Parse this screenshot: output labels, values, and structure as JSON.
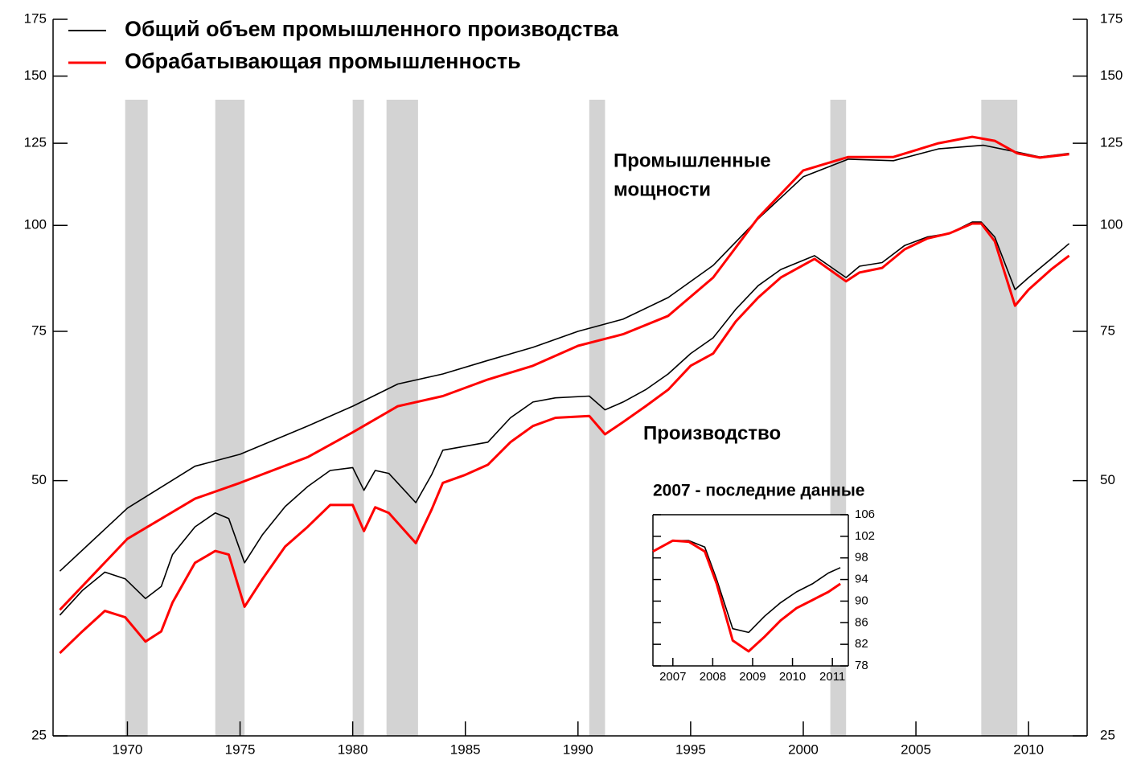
{
  "chart_data": [
    {
      "type": "line",
      "xlim": [
        1966.7,
        2012.6
      ],
      "xticks": [
        1970,
        1975,
        1980,
        1985,
        1990,
        1995,
        2000,
        2005,
        2010
      ],
      "ylim": [
        25,
        175
      ],
      "yticks": [
        25,
        50,
        75,
        100,
        125,
        150,
        175
      ],
      "y2lim": [
        25,
        175
      ],
      "y2ticks": [
        25,
        50,
        75,
        100,
        125,
        150,
        175
      ],
      "log_scale": true,
      "legend": "upper left",
      "shaded_periods": [
        [
          1969.9,
          1970.9
        ],
        [
          1973.9,
          1975.2
        ],
        [
          1980.0,
          1980.5
        ],
        [
          1981.5,
          1982.9
        ],
        [
          1990.5,
          1991.2
        ],
        [
          2001.2,
          2001.9
        ],
        [
          2007.9,
          2009.5
        ]
      ],
      "annotations": [
        "Промышленные",
        "мощности",
        "Производство"
      ],
      "series": [
        {
          "name": "Общий объем промышленного производства",
          "color": "#000000",
          "x": [
            1967,
            1968,
            1969,
            1969.9,
            1970.8,
            1971.5,
            1972,
            1973,
            1973.9,
            1974.5,
            1975.2,
            1976,
            1977,
            1978,
            1979,
            1980.0,
            1980.5,
            1981,
            1981.6,
            1982.8,
            1983.5,
            1984,
            1985,
            1986,
            1987,
            1988,
            1989,
            1990.5,
            1991.2,
            1992,
            1993,
            1994,
            1995,
            1996,
            1997,
            1998,
            1999,
            2000.5,
            2001.9,
            2002.5,
            2003.5,
            2004.5,
            2005.5,
            2006.5,
            2007.5,
            2007.9,
            2008.5,
            2009.4,
            2010,
            2011,
            2011.8
          ],
          "values": [
            34.7,
            37.1,
            39.0,
            38.3,
            36.3,
            37.5,
            40.9,
            44.1,
            45.8,
            45.1,
            40.0,
            43.2,
            46.6,
            49.2,
            51.4,
            51.8,
            48.7,
            51.4,
            51.0,
            47.1,
            50.8,
            54.3,
            54.9,
            55.5,
            59.3,
            61.9,
            62.6,
            62.9,
            60.6,
            61.9,
            64.0,
            66.8,
            70.6,
            73.7,
            79.6,
            84.9,
            88.7,
            92.1,
            86.8,
            89.5,
            90.4,
            94.7,
            96.9,
            97.9,
            100.9,
            100.9,
            96.9,
            84.0,
            86.8,
            91.3,
            95.2
          ]
        },
        {
          "name": "Обрабатывающая промышленность",
          "color": "#ff0000",
          "x": [
            1967,
            1968,
            1969,
            1969.9,
            1970.8,
            1971.5,
            1972,
            1973,
            1973.9,
            1974.5,
            1975.2,
            1976,
            1977,
            1978,
            1979,
            1980.0,
            1980.5,
            1981,
            1981.6,
            1982.8,
            1983.5,
            1984,
            1985,
            1986,
            1987,
            1988,
            1989,
            1990.5,
            1991.2,
            1992,
            1993,
            1994,
            1995,
            1996,
            1997,
            1998,
            1999,
            2000.5,
            2001.9,
            2002.5,
            2003.5,
            2004.5,
            2005.5,
            2006.5,
            2007.5,
            2007.9,
            2008.5,
            2009.4,
            2010,
            2011,
            2011.8
          ],
          "values": [
            31.3,
            33.2,
            35.1,
            34.5,
            32.3,
            33.2,
            35.9,
            40.0,
            41.3,
            40.9,
            35.5,
            38.3,
            41.8,
            44.1,
            46.8,
            46.8,
            43.6,
            46.5,
            45.8,
            42.2,
            46.2,
            49.7,
            50.8,
            52.2,
            55.5,
            58.0,
            59.3,
            59.6,
            56.7,
            58.6,
            61.2,
            64.0,
            68.3,
            70.6,
            77.0,
            82.2,
            86.8,
            91.3,
            85.9,
            88.0,
            89.1,
            93.7,
            96.5,
            97.9,
            100.5,
            100.5,
            95.8,
            80.4,
            84.0,
            88.7,
            92.1
          ]
        },
        {
          "color": "#000000",
          "x": [
            1967,
            1970,
            1973,
            1975,
            1978,
            1980,
            1982,
            1984,
            1986,
            1988,
            1990,
            1992,
            1994,
            1996,
            1998,
            2000,
            2002,
            2004,
            2006,
            2008,
            2009.5,
            2010.5,
            2011.8
          ],
          "values": [
            39.1,
            46.4,
            52.0,
            53.7,
            58.0,
            61.2,
            65.0,
            66.8,
            69.3,
            71.8,
            75.0,
            77.5,
            82.2,
            89.7,
            101.8,
            114.1,
            119.7,
            119.2,
            123.1,
            124.3,
            122.0,
            120.4,
            121.6
          ]
        },
        {
          "color": "#ff0000",
          "x": [
            1967,
            1970,
            1973,
            1975,
            1978,
            1980,
            1982,
            1984,
            1986,
            1988,
            1990,
            1992,
            1994,
            1996,
            1998,
            2000,
            2002,
            2004,
            2006,
            2007.5,
            2008.5,
            2009.5,
            2010.5,
            2011.8
          ],
          "values": [
            35.2,
            42.7,
            47.6,
            49.7,
            53.3,
            57.0,
            61.2,
            62.9,
            65.8,
            68.3,
            72.1,
            74.4,
            78.2,
            86.8,
            102.1,
            116.1,
            120.4,
            120.4,
            125.0,
            127.2,
            125.8,
            121.6,
            120.2,
            121.3
          ]
        }
      ]
    },
    {
      "type": "line",
      "title": "2007 - последние данные",
      "xlim": [
        2007.0,
        2011.9
      ],
      "xticks": [
        {
          "value": 2007.5,
          "label": "2007"
        },
        {
          "value": 2008.5,
          "label": "2008"
        },
        {
          "value": 2009.5,
          "label": "2009"
        },
        {
          "value": 2010.5,
          "label": "2010"
        },
        {
          "value": 2011.5,
          "label": "2011"
        }
      ],
      "ylim": [
        78,
        106
      ],
      "yticks": [
        78,
        82,
        86,
        90,
        94,
        98,
        102,
        106
      ],
      "series": [
        {
          "color": "#000000",
          "x": [
            2007.0,
            2007.5,
            2007.9,
            2008.3,
            2008.6,
            2009.0,
            2009.4,
            2009.8,
            2010.2,
            2010.6,
            2011.0,
            2011.4,
            2011.7
          ],
          "values": [
            99.2,
            101.2,
            101.2,
            100.0,
            94.0,
            84.9,
            84.2,
            87.2,
            89.7,
            91.7,
            93.2,
            95.2,
            96.2
          ]
        },
        {
          "color": "#ff0000",
          "x": [
            2007.0,
            2007.5,
            2007.9,
            2008.3,
            2008.6,
            2009.0,
            2009.4,
            2009.8,
            2010.2,
            2010.6,
            2011.0,
            2011.4,
            2011.7
          ],
          "values": [
            99.2,
            101.2,
            101.0,
            99.2,
            93.2,
            82.7,
            80.7,
            83.4,
            86.4,
            88.7,
            90.2,
            91.7,
            93.2
          ]
        }
      ]
    }
  ]
}
